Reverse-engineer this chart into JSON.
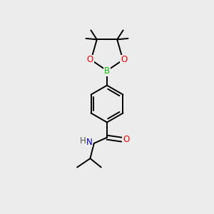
{
  "bg_color": "#ececec",
  "atom_colors": {
    "C": "#000000",
    "H": "#555555",
    "O": "#ee0000",
    "N": "#0000cc",
    "B": "#00bb00"
  },
  "line_color": "#000000",
  "line_width": 1.4
}
